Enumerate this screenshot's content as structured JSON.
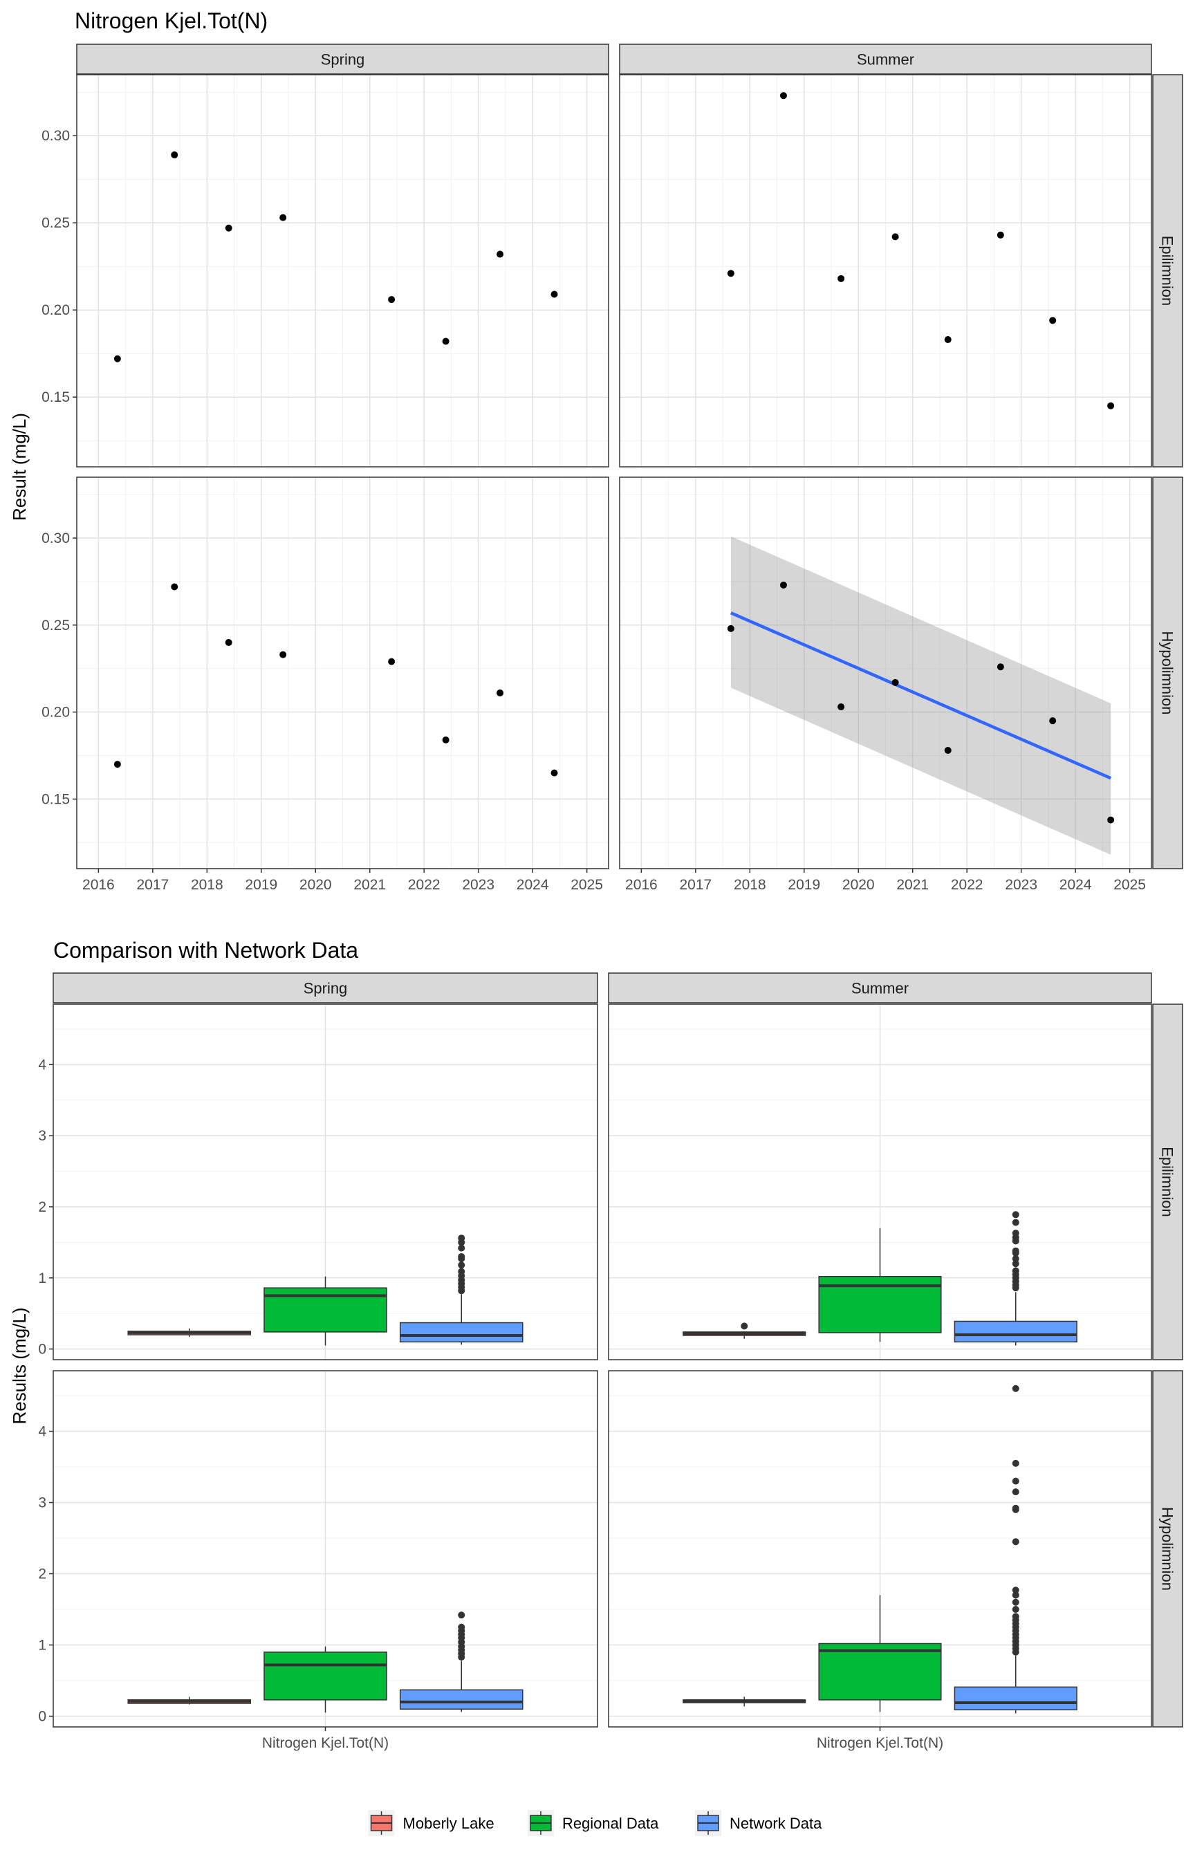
{
  "chart_data": [
    {
      "type": "scatter",
      "title": "Nitrogen Kjel.Tot(N)",
      "xlabel": "",
      "ylabel": "Result (mg/L)",
      "xlim": [
        2015.6,
        2025.4
      ],
      "ylim": [
        0.11,
        0.335
      ],
      "x_ticks": [
        2016,
        2017,
        2018,
        2019,
        2020,
        2021,
        2022,
        2023,
        2024,
        2025
      ],
      "y_ticks": [
        0.15,
        0.2,
        0.25,
        0.3
      ],
      "y_tick_labels": [
        "0.15",
        "0.20",
        "0.25",
        "0.30"
      ],
      "grid": true,
      "columns": [
        "Spring",
        "Summer"
      ],
      "rows": [
        "Epilimnion",
        "Hypolimnion"
      ],
      "panels": [
        {
          "season": "Spring",
          "layer": "Epilimnion",
          "points": [
            [
              2016.35,
              0.172
            ],
            [
              2017.4,
              0.289
            ],
            [
              2018.4,
              0.247
            ],
            [
              2019.4,
              0.253
            ],
            [
              2021.4,
              0.206
            ],
            [
              2022.4,
              0.182
            ],
            [
              2023.4,
              0.232
            ],
            [
              2024.4,
              0.209
            ]
          ]
        },
        {
          "season": "Summer",
          "layer": "Epilimnion",
          "points": [
            [
              2017.65,
              0.221
            ],
            [
              2018.62,
              0.323
            ],
            [
              2019.68,
              0.218
            ],
            [
              2020.68,
              0.242
            ],
            [
              2021.65,
              0.183
            ],
            [
              2022.62,
              0.243
            ],
            [
              2023.58,
              0.194
            ],
            [
              2024.65,
              0.145
            ]
          ]
        },
        {
          "season": "Spring",
          "layer": "Hypolimnion",
          "points": [
            [
              2016.35,
              0.17
            ],
            [
              2017.4,
              0.272
            ],
            [
              2018.4,
              0.24
            ],
            [
              2019.4,
              0.233
            ],
            [
              2021.4,
              0.229
            ],
            [
              2022.4,
              0.184
            ],
            [
              2023.4,
              0.211
            ],
            [
              2024.4,
              0.165
            ]
          ]
        },
        {
          "season": "Summer",
          "layer": "Hypolimnion",
          "points": [
            [
              2017.65,
              0.248
            ],
            [
              2018.62,
              0.273
            ],
            [
              2019.68,
              0.203
            ],
            [
              2020.68,
              0.217
            ],
            [
              2021.65,
              0.178
            ],
            [
              2022.62,
              0.226
            ],
            [
              2023.58,
              0.195
            ],
            [
              2024.65,
              0.138
            ]
          ],
          "trend": {
            "x": [
              2017.65,
              2024.65
            ],
            "fit": [
              0.257,
              0.162
            ],
            "lower": [
              0.214,
              0.118
            ],
            "upper": [
              0.301,
              0.205
            ],
            "color": "#3366FF",
            "band_color": "#999999"
          }
        }
      ]
    },
    {
      "type": "boxplot",
      "title": "Comparison with Network Data",
      "xlabel": "",
      "ylabel": "Results (mg/L)",
      "categories": [
        "Nitrogen Kjel.Tot(N)"
      ],
      "ylim": [
        -0.15,
        4.85
      ],
      "y_ticks": [
        0,
        1,
        2,
        3,
        4
      ],
      "grid": true,
      "columns": [
        "Spring",
        "Summer"
      ],
      "rows": [
        "Epilimnion",
        "Hypolimnion"
      ],
      "legend": {
        "position": "bottom",
        "items": [
          {
            "label": "Moberly Lake",
            "color": "#F8766D"
          },
          {
            "label": "Regional Data",
            "color": "#00BA38"
          },
          {
            "label": "Network Data",
            "color": "#619CFF"
          }
        ]
      },
      "panels": [
        {
          "season": "Spring",
          "layer": "Epilimnion",
          "boxes": [
            {
              "group": "Moberly Lake",
              "q1": 0.2,
              "median": 0.23,
              "q3": 0.25,
              "lower": 0.17,
              "upper": 0.29,
              "outliers": []
            },
            {
              "group": "Regional Data",
              "q1": 0.24,
              "median": 0.75,
              "q3": 0.86,
              "lower": 0.05,
              "upper": 1.02,
              "outliers": []
            },
            {
              "group": "Network Data",
              "q1": 0.1,
              "median": 0.19,
              "q3": 0.37,
              "lower": 0.06,
              "upper": 0.77,
              "outliers": [
                0.82,
                0.87,
                0.92,
                0.97,
                1.03,
                1.09,
                1.18,
                1.27,
                1.3,
                1.42,
                1.5,
                1.56
              ]
            }
          ]
        },
        {
          "season": "Summer",
          "layer": "Epilimnion",
          "boxes": [
            {
              "group": "Moberly Lake",
              "q1": 0.19,
              "median": 0.22,
              "q3": 0.24,
              "lower": 0.145,
              "upper": 0.24,
              "outliers": [
                0.323
              ]
            },
            {
              "group": "Regional Data",
              "q1": 0.23,
              "median": 0.89,
              "q3": 1.02,
              "lower": 0.1,
              "upper": 1.7,
              "outliers": []
            },
            {
              "group": "Network Data",
              "q1": 0.1,
              "median": 0.2,
              "q3": 0.39,
              "lower": 0.05,
              "upper": 0.8,
              "outliers": [
                0.86,
                0.9,
                0.95,
                1.0,
                1.05,
                1.1,
                1.2,
                1.27,
                1.35,
                1.38,
                1.52,
                1.57,
                1.63,
                1.78,
                1.89
              ]
            }
          ]
        },
        {
          "season": "Spring",
          "layer": "Hypolimnion",
          "boxes": [
            {
              "group": "Moberly Lake",
              "q1": 0.18,
              "median": 0.21,
              "q3": 0.23,
              "lower": 0.165,
              "upper": 0.272,
              "outliers": []
            },
            {
              "group": "Regional Data",
              "q1": 0.23,
              "median": 0.72,
              "q3": 0.9,
              "lower": 0.05,
              "upper": 0.98,
              "outliers": []
            },
            {
              "group": "Network Data",
              "q1": 0.1,
              "median": 0.2,
              "q3": 0.37,
              "lower": 0.06,
              "upper": 0.78,
              "outliers": [
                0.83,
                0.88,
                0.93,
                0.98,
                1.04,
                1.1,
                1.15,
                1.2,
                1.25,
                1.42
              ]
            }
          ]
        },
        {
          "season": "Summer",
          "layer": "Hypolimnion",
          "boxes": [
            {
              "group": "Moberly Lake",
              "q1": 0.19,
              "median": 0.21,
              "q3": 0.23,
              "lower": 0.138,
              "upper": 0.273,
              "outliers": []
            },
            {
              "group": "Regional Data",
              "q1": 0.23,
              "median": 0.92,
              "q3": 1.02,
              "lower": 0.06,
              "upper": 1.7,
              "outliers": []
            },
            {
              "group": "Network Data",
              "q1": 0.09,
              "median": 0.19,
              "q3": 0.41,
              "lower": 0.04,
              "upper": 0.85,
              "outliers": [
                0.9,
                0.95,
                1.0,
                1.05,
                1.1,
                1.15,
                1.2,
                1.25,
                1.3,
                1.35,
                1.4,
                1.5,
                1.6,
                1.7,
                1.77,
                2.45,
                2.9,
                2.92,
                3.15,
                3.3,
                3.55,
                4.6
              ]
            }
          ]
        }
      ]
    }
  ]
}
